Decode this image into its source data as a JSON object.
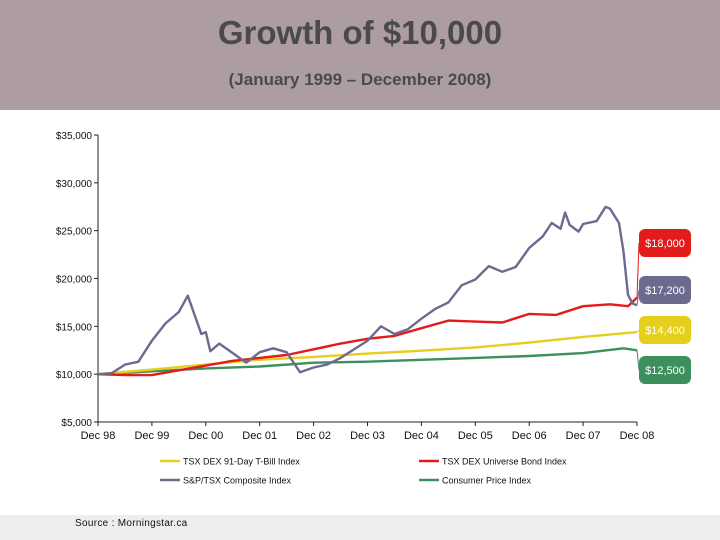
{
  "header": {
    "title": "Growth of $10,000",
    "subtitle": "(January 1999 – December 2008)"
  },
  "source": "Source : Morningstar.ca",
  "colors": {
    "header_bg": "#ad9da1",
    "composite": "#6b6b8f",
    "bond": "#e41b1b",
    "tbill": "#e6cf1c",
    "cpi": "#3e8f5e"
  },
  "chart_data": {
    "type": "line",
    "title": "Growth of $10,000",
    "subtitle": "(January 1999 – December 2008)",
    "xlabel": "",
    "ylabel": "",
    "x_ticks": [
      "Dec 98",
      "Dec 99",
      "Dec 00",
      "Dec 01",
      "Dec 02",
      "Dec 03",
      "Dec 04",
      "Dec 05",
      "Dec 06",
      "Dec 07",
      "Dec 08"
    ],
    "y_ticks": [
      "$5,000",
      "$10,000",
      "$15,000",
      "$20,000",
      "$25,000",
      "$30,000",
      "$35,000"
    ],
    "ylim": [
      5000,
      35000
    ],
    "grid": false,
    "legend_position": "bottom",
    "series": [
      {
        "name": "TSX DEX 91-Day T-Bill Index",
        "color": "#e6cf1c",
        "end_label": "$14,400",
        "points": [
          [
            "Dec 98",
            10000
          ],
          [
            "Dec 99",
            10480
          ],
          [
            "Dec 00",
            11000
          ],
          [
            "Dec 01",
            11500
          ],
          [
            "Dec 02",
            11800
          ],
          [
            "Dec 03",
            12150
          ],
          [
            "Dec 04",
            12450
          ],
          [
            "Dec 05",
            12800
          ],
          [
            "Dec 06",
            13300
          ],
          [
            "Dec 07",
            13900
          ],
          [
            "Dec 08",
            14400
          ]
        ]
      },
      {
        "name": "TSX DEX Universe Bond Index",
        "color": "#e41b1b",
        "end_label": "$18,000",
        "points": [
          [
            "Dec 98",
            10000
          ],
          [
            "Jun 99",
            9900
          ],
          [
            "Dec 99",
            9900
          ],
          [
            "Jun 00",
            10400
          ],
          [
            "Dec 00",
            10900
          ],
          [
            "Jun 01",
            11400
          ],
          [
            "Dec 01",
            11700
          ],
          [
            "Jun 02",
            12000
          ],
          [
            "Dec 02",
            12600
          ],
          [
            "Jun 03",
            13200
          ],
          [
            "Dec 03",
            13700
          ],
          [
            "Jun 04",
            14000
          ],
          [
            "Dec 04",
            14800
          ],
          [
            "Jun 05",
            15600
          ],
          [
            "Dec 05",
            15500
          ],
          [
            "Jun 06",
            15400
          ],
          [
            "Dec 06",
            16300
          ],
          [
            "Jun 07",
            16200
          ],
          [
            "Dec 07",
            17100
          ],
          [
            "Jun 08",
            17300
          ],
          [
            "Oct 08",
            17100
          ],
          [
            "Dec 08",
            18000
          ]
        ]
      },
      {
        "name": "S&P/TSX Composite Index",
        "color": "#6b6b8f",
        "end_label": "$17,200",
        "points": [
          [
            "Dec 98",
            10000
          ],
          [
            "Mar 99",
            10100
          ],
          [
            "Jun 99",
            11000
          ],
          [
            "Sep 99",
            11300
          ],
          [
            "Dec 99",
            13500
          ],
          [
            "Mar 00",
            15300
          ],
          [
            "Jun 00",
            16500
          ],
          [
            "Aug 00",
            18200
          ],
          [
            "Nov 00",
            14200
          ],
          [
            "Dec 00",
            14400
          ],
          [
            "Jan 01",
            12400
          ],
          [
            "Mar 01",
            13200
          ],
          [
            "Jun 01",
            12200
          ],
          [
            "Sep 01",
            11200
          ],
          [
            "Dec 01",
            12300
          ],
          [
            "Mar 02",
            12700
          ],
          [
            "Jun 02",
            12300
          ],
          [
            "Sep 02",
            10200
          ],
          [
            "Dec 02",
            10700
          ],
          [
            "Mar 03",
            11000
          ],
          [
            "Jun 03",
            11700
          ],
          [
            "Dec 03",
            13500
          ],
          [
            "Mar 04",
            15000
          ],
          [
            "Jun 04",
            14200
          ],
          [
            "Sep 04",
            14700
          ],
          [
            "Dec 04",
            15800
          ],
          [
            "Mar 05",
            16800
          ],
          [
            "Jun 05",
            17500
          ],
          [
            "Sep 05",
            19300
          ],
          [
            "Dec 05",
            19900
          ],
          [
            "Mar 06",
            21300
          ],
          [
            "Jun 06",
            20700
          ],
          [
            "Sep 06",
            21200
          ],
          [
            "Dec 06",
            23200
          ],
          [
            "Mar 07",
            24400
          ],
          [
            "May 07",
            25800
          ],
          [
            "Jul 07",
            25200
          ],
          [
            "Aug 07",
            26900
          ],
          [
            "Sep 07",
            25600
          ],
          [
            "Nov 07",
            24900
          ],
          [
            "Dec 07",
            25700
          ],
          [
            "Mar 08",
            26000
          ],
          [
            "May 08",
            27500
          ],
          [
            "Jun 08",
            27300
          ],
          [
            "Aug 08",
            25800
          ],
          [
            "Sep 08",
            22800
          ],
          [
            "Oct 08",
            18300
          ],
          [
            "Nov 08",
            17400
          ],
          [
            "Dec 08",
            17200
          ]
        ]
      },
      {
        "name": "Consumer Price Index",
        "color": "#3e8f5e",
        "end_label": "$12,500",
        "points": [
          [
            "Dec 98",
            10000
          ],
          [
            "Dec 99",
            10300
          ],
          [
            "Dec 00",
            10600
          ],
          [
            "Dec 01",
            10800
          ],
          [
            "Dec 02",
            11200
          ],
          [
            "Dec 03",
            11300
          ],
          [
            "Dec 04",
            11500
          ],
          [
            "Dec 05",
            11700
          ],
          [
            "Dec 06",
            11900
          ],
          [
            "Dec 07",
            12200
          ],
          [
            "Sep 08",
            12700
          ],
          [
            "Dec 08",
            12500
          ]
        ]
      }
    ]
  }
}
